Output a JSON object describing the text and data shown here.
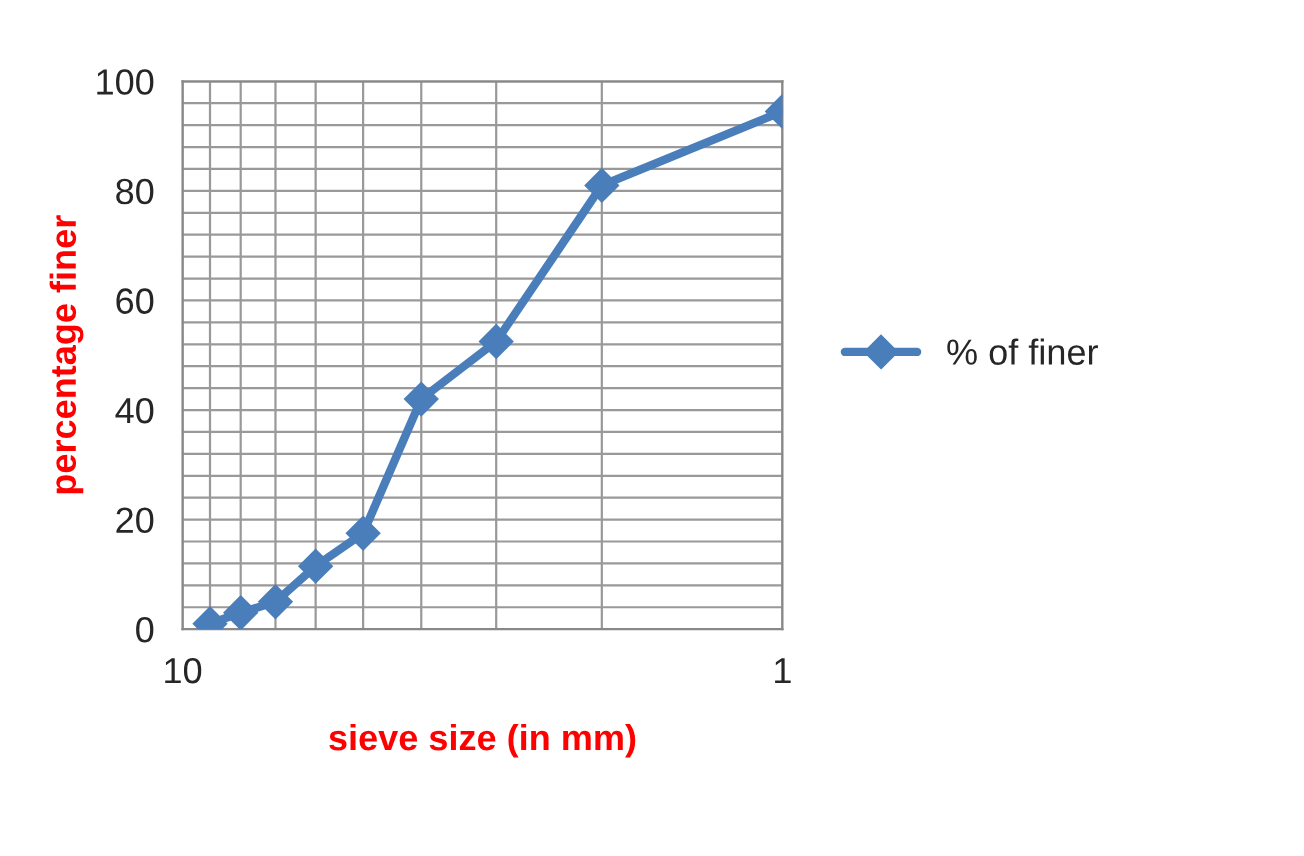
{
  "chart_data": {
    "type": "line",
    "xlabel": "sieve size (in mm)",
    "ylabel": "percentage finer",
    "x": [
      9,
      8,
      7,
      6,
      5,
      4,
      3,
      2,
      1
    ],
    "series": [
      {
        "name": "% of finer",
        "color": "#4a7ebb",
        "values": [
          1,
          3,
          5,
          11.5,
          17.5,
          42,
          52.5,
          81,
          94.5
        ]
      }
    ],
    "log": "x",
    "xlim": [
      10,
      1
    ],
    "xticks": [
      10,
      1
    ],
    "ylim": [
      0,
      100
    ],
    "yticks": [
      0,
      20,
      40,
      60,
      80,
      100
    ],
    "grid": true,
    "legend": "right",
    "marker": "diamond",
    "line_style": "solid"
  }
}
